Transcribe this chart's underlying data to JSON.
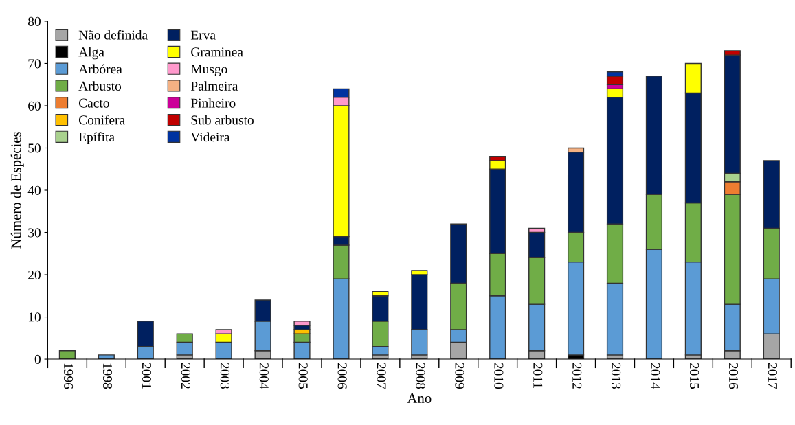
{
  "chart_data": {
    "type": "bar",
    "stacked": true,
    "xlabel": "Ano",
    "ylabel": "Número de Espécies",
    "categories": [
      "1996",
      "1998",
      "2001",
      "2002",
      "2003",
      "2004",
      "2005",
      "2006",
      "2007",
      "2008",
      "2009",
      "2010",
      "2011",
      "2012",
      "2013",
      "2014",
      "2015",
      "2016",
      "2017"
    ],
    "series": [
      {
        "name": "Não definida",
        "color": "#a6a6a6",
        "values": [
          null,
          null,
          null,
          1,
          null,
          2,
          null,
          null,
          1,
          1,
          4,
          null,
          2,
          null,
          1,
          null,
          1,
          2,
          6
        ]
      },
      {
        "name": "Alga",
        "color": "#000000",
        "values": [
          null,
          null,
          null,
          null,
          null,
          null,
          null,
          null,
          null,
          null,
          null,
          null,
          null,
          1,
          null,
          null,
          null,
          null,
          null
        ]
      },
      {
        "name": "Arbórea",
        "color": "#5b9bd5",
        "values": [
          null,
          1,
          3,
          3,
          4,
          7,
          4,
          19,
          2,
          6,
          3,
          15,
          11,
          22,
          17,
          26,
          22,
          11,
          13
        ]
      },
      {
        "name": "Arbusto",
        "color": "#70ad47",
        "values": [
          2,
          null,
          null,
          2,
          null,
          null,
          2,
          8,
          6,
          null,
          11,
          10,
          11,
          7,
          14,
          13,
          14,
          26,
          12
        ]
      },
      {
        "name": "Cacto",
        "color": "#ed7d31",
        "values": [
          null,
          null,
          null,
          null,
          null,
          null,
          null,
          null,
          null,
          null,
          null,
          null,
          null,
          null,
          null,
          null,
          null,
          3,
          null
        ]
      },
      {
        "name": "Conifera",
        "color": "#ffc000",
        "values": [
          null,
          null,
          null,
          null,
          null,
          null,
          1,
          null,
          null,
          null,
          null,
          null,
          null,
          null,
          null,
          null,
          null,
          null,
          null
        ]
      },
      {
        "name": "Epífita",
        "color": "#a9d18e",
        "values": [
          null,
          null,
          null,
          null,
          null,
          null,
          null,
          null,
          null,
          null,
          null,
          null,
          null,
          null,
          null,
          null,
          null,
          2,
          null
        ]
      },
      {
        "name": "Erva",
        "color": "#002060",
        "values": [
          null,
          null,
          6,
          null,
          null,
          5,
          1,
          2,
          6,
          13,
          14,
          20,
          6,
          19,
          30,
          28,
          26,
          28,
          16
        ]
      },
      {
        "name": "Graminea",
        "color": "#ffff00",
        "values": [
          null,
          null,
          null,
          null,
          2,
          null,
          null,
          31,
          1,
          1,
          null,
          2,
          null,
          null,
          2,
          null,
          7,
          null,
          null
        ]
      },
      {
        "name": "Musgo",
        "color": "#ff99cc",
        "values": [
          null,
          null,
          null,
          null,
          1,
          null,
          1,
          2,
          null,
          null,
          null,
          null,
          1,
          null,
          null,
          null,
          null,
          null,
          null
        ]
      },
      {
        "name": "Palmeira",
        "color": "#f4b183",
        "values": [
          null,
          null,
          null,
          null,
          null,
          null,
          null,
          null,
          null,
          null,
          null,
          null,
          null,
          1,
          null,
          null,
          null,
          null,
          null
        ]
      },
      {
        "name": "Pinheiro",
        "color": "#cc0099",
        "values": [
          null,
          null,
          null,
          null,
          null,
          null,
          null,
          null,
          null,
          null,
          null,
          null,
          null,
          null,
          1,
          null,
          null,
          null,
          null
        ]
      },
      {
        "name": "Sub arbusto",
        "color": "#c00000",
        "values": [
          null,
          null,
          null,
          null,
          null,
          null,
          null,
          null,
          null,
          null,
          null,
          1,
          null,
          null,
          2,
          null,
          null,
          1,
          null
        ]
      },
      {
        "name": "Videira",
        "color": "#0033a0",
        "values": [
          null,
          null,
          null,
          null,
          null,
          null,
          null,
          2,
          null,
          null,
          null,
          null,
          null,
          null,
          1,
          null,
          null,
          null,
          null
        ]
      }
    ],
    "ylim": [
      0,
      80
    ],
    "yticks": [
      0,
      10,
      20,
      30,
      40,
      50,
      60,
      70,
      80
    ],
    "grid": false,
    "legend": "top left"
  }
}
